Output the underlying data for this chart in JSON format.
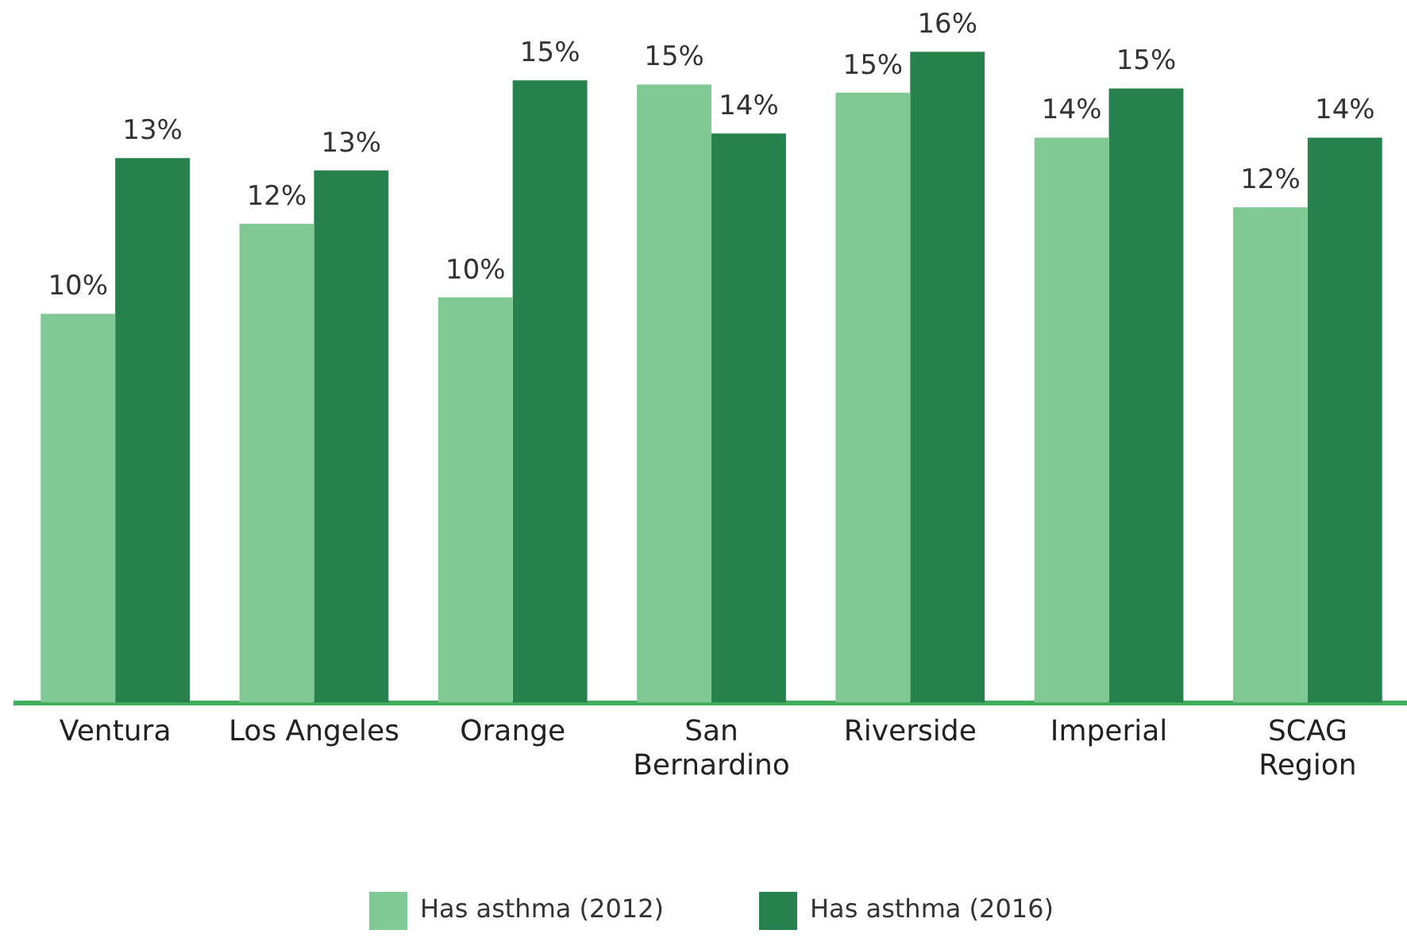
{
  "chart_data": {
    "type": "bar",
    "categories": [
      "Ventura",
      "Los Angeles",
      "Orange",
      "San\nBernardino",
      "Riverside",
      "Imperial",
      "SCAG\nRegion"
    ],
    "series": [
      {
        "name": "Has asthma (2012)",
        "color": "#80c995",
        "values": [
          9.5,
          11.7,
          9.9,
          15.1,
          14.9,
          13.8,
          12.1
        ],
        "value_labels": [
          "10%",
          "12%",
          "10%",
          "15%",
          "15%",
          "14%",
          "12%"
        ]
      },
      {
        "name": "Has asthma (2016)",
        "color": "#27814d",
        "values": [
          13.3,
          13.0,
          15.2,
          13.9,
          15.9,
          15.0,
          13.8
        ],
        "value_labels": [
          "13%",
          "13%",
          "15%",
          "14%",
          "16%",
          "15%",
          "14%"
        ]
      }
    ],
    "grid": false,
    "legend": "bottom"
  }
}
